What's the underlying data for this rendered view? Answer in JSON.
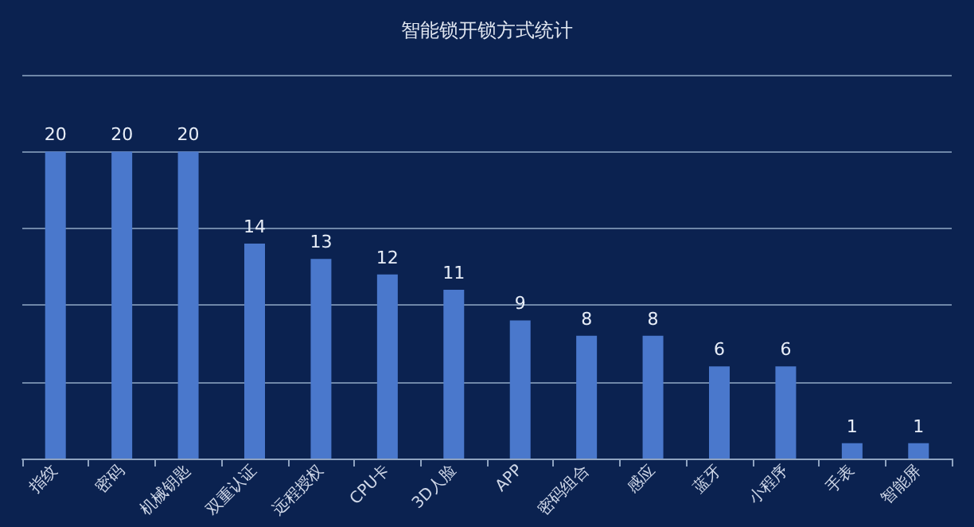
{
  "chart_data": {
    "type": "bar",
    "title": "智能锁开锁方式统计",
    "categories": [
      "指纹",
      "密码",
      "机械钥匙",
      "双重认证",
      "远程授权",
      "CPU卡",
      "3D人脸",
      "APP",
      "密码组合",
      "感应",
      "蓝牙",
      "小程序",
      "手表",
      "智能屏"
    ],
    "values": [
      20,
      20,
      20,
      14,
      13,
      12,
      11,
      9,
      8,
      8,
      6,
      6,
      1,
      1
    ],
    "color": "#4a78cc",
    "ylim": [
      0,
      25
    ],
    "yticks": [
      {
        "value": 0,
        "label": null
      },
      {
        "value": 5,
        "label": null
      },
      {
        "value": 10,
        "label": null
      },
      {
        "value": 15,
        "label": null
      },
      {
        "value": 20,
        "label": null
      },
      {
        "value": 25,
        "label": null
      }
    ],
    "tick_labels": "x",
    "grid": "y",
    "data_labels": true
  }
}
